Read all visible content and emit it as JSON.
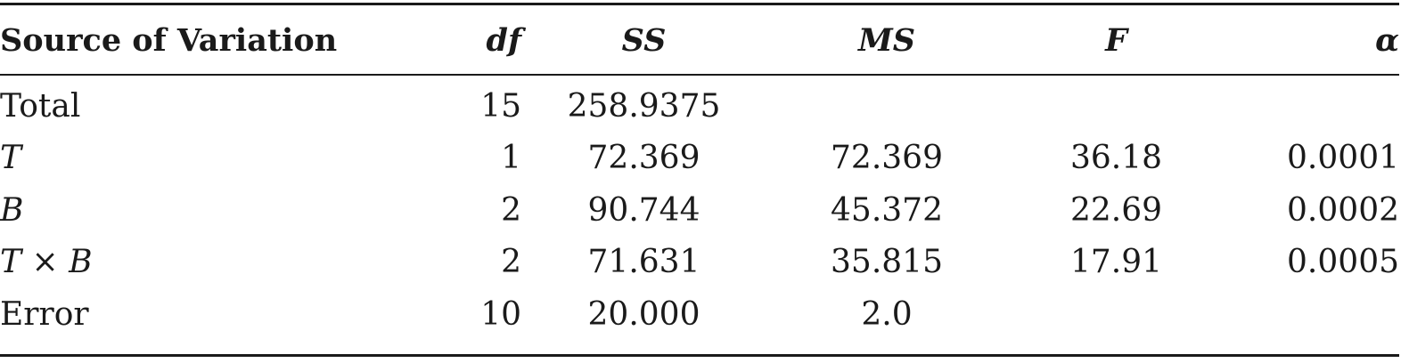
{
  "table": {
    "headers": {
      "source": "Source of Variation",
      "df": "df",
      "ss": "SS",
      "ms": "MS",
      "f": "F",
      "alpha": "α"
    },
    "rows": [
      {
        "source": "Total",
        "df": "15",
        "ss": "258.9375",
        "ms": "",
        "f": "",
        "alpha": ""
      },
      {
        "source": "T",
        "df": "1",
        "ss": "72.369",
        "ms": "72.369",
        "f": "36.18",
        "alpha": "0.0001"
      },
      {
        "source": "B",
        "df": "2",
        "ss": "90.744",
        "ms": "45.372",
        "f": "22.69",
        "alpha": "0.0002"
      },
      {
        "source_a": "T",
        "source_op": " × ",
        "source_b": "B",
        "df": "2",
        "ss": "71.631",
        "ms": "35.815",
        "f": "17.91",
        "alpha": "0.0005"
      },
      {
        "source": "Error",
        "df": "10",
        "ss": "20.000",
        "ms": "2.0",
        "f": "",
        "alpha": ""
      }
    ]
  }
}
